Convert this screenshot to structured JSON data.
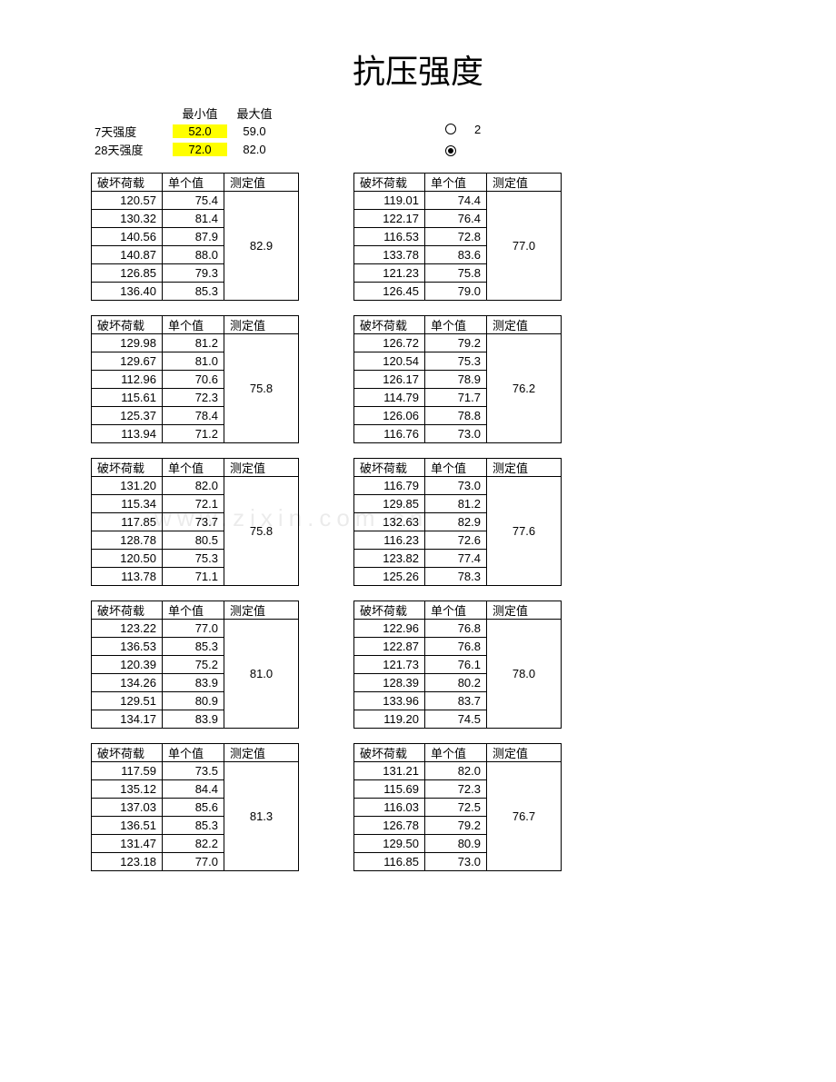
{
  "title": "抗压强度",
  "header": {
    "col_min": "最小值",
    "col_max": "最大值",
    "row1_label": "7天强度",
    "row1_min": "52.0",
    "row1_max": "59.0",
    "row2_label": "28天强度",
    "row2_min": "72.0",
    "row2_max": "82.0",
    "radio1_label": "2",
    "radio1_checked": false,
    "radio2_checked": true
  },
  "colheaders": {
    "load": "破坏荷载",
    "single": "单个值",
    "measure": "测定值"
  },
  "blocks": [
    [
      {
        "measure": "82.9",
        "rows": [
          {
            "load": "120.57",
            "single": "75.4"
          },
          {
            "load": "130.32",
            "single": "81.4"
          },
          {
            "load": "140.56",
            "single": "87.9"
          },
          {
            "load": "140.87",
            "single": "88.0"
          },
          {
            "load": "126.85",
            "single": "79.3"
          },
          {
            "load": "136.40",
            "single": "85.3"
          }
        ]
      },
      {
        "measure": "77.0",
        "rows": [
          {
            "load": "119.01",
            "single": "74.4"
          },
          {
            "load": "122.17",
            "single": "76.4"
          },
          {
            "load": "116.53",
            "single": "72.8"
          },
          {
            "load": "133.78",
            "single": "83.6"
          },
          {
            "load": "121.23",
            "single": "75.8"
          },
          {
            "load": "126.45",
            "single": "79.0"
          }
        ]
      }
    ],
    [
      {
        "measure": "75.8",
        "rows": [
          {
            "load": "129.98",
            "single": "81.2"
          },
          {
            "load": "129.67",
            "single": "81.0"
          },
          {
            "load": "112.96",
            "single": "70.6"
          },
          {
            "load": "115.61",
            "single": "72.3"
          },
          {
            "load": "125.37",
            "single": "78.4"
          },
          {
            "load": "113.94",
            "single": "71.2"
          }
        ]
      },
      {
        "measure": "76.2",
        "rows": [
          {
            "load": "126.72",
            "single": "79.2"
          },
          {
            "load": "120.54",
            "single": "75.3"
          },
          {
            "load": "126.17",
            "single": "78.9"
          },
          {
            "load": "114.79",
            "single": "71.7"
          },
          {
            "load": "126.06",
            "single": "78.8"
          },
          {
            "load": "116.76",
            "single": "73.0"
          }
        ]
      }
    ],
    [
      {
        "measure": "75.8",
        "rows": [
          {
            "load": "131.20",
            "single": "82.0"
          },
          {
            "load": "115.34",
            "single": "72.1"
          },
          {
            "load": "117.85",
            "single": "73.7"
          },
          {
            "load": "128.78",
            "single": "80.5"
          },
          {
            "load": "120.50",
            "single": "75.3"
          },
          {
            "load": "113.78",
            "single": "71.1"
          }
        ]
      },
      {
        "measure": "77.6",
        "rows": [
          {
            "load": "116.79",
            "single": "73.0"
          },
          {
            "load": "129.85",
            "single": "81.2"
          },
          {
            "load": "132.63",
            "single": "82.9"
          },
          {
            "load": "116.23",
            "single": "72.6"
          },
          {
            "load": "123.82",
            "single": "77.4"
          },
          {
            "load": "125.26",
            "single": "78.3"
          }
        ]
      }
    ],
    [
      {
        "measure": "81.0",
        "rows": [
          {
            "load": "123.22",
            "single": "77.0"
          },
          {
            "load": "136.53",
            "single": "85.3"
          },
          {
            "load": "120.39",
            "single": "75.2"
          },
          {
            "load": "134.26",
            "single": "83.9"
          },
          {
            "load": "129.51",
            "single": "80.9"
          },
          {
            "load": "134.17",
            "single": "83.9"
          }
        ]
      },
      {
        "measure": "78.0",
        "rows": [
          {
            "load": "122.96",
            "single": "76.8"
          },
          {
            "load": "122.87",
            "single": "76.8"
          },
          {
            "load": "121.73",
            "single": "76.1"
          },
          {
            "load": "128.39",
            "single": "80.2"
          },
          {
            "load": "133.96",
            "single": "83.7"
          },
          {
            "load": "119.20",
            "single": "74.5"
          }
        ]
      }
    ],
    [
      {
        "measure": "81.3",
        "rows": [
          {
            "load": "117.59",
            "single": "73.5"
          },
          {
            "load": "135.12",
            "single": "84.4"
          },
          {
            "load": "137.03",
            "single": "85.6"
          },
          {
            "load": "136.51",
            "single": "85.3"
          },
          {
            "load": "131.47",
            "single": "82.2"
          },
          {
            "load": "123.18",
            "single": "77.0"
          }
        ]
      },
      {
        "measure": "76.7",
        "rows": [
          {
            "load": "131.21",
            "single": "82.0"
          },
          {
            "load": "115.69",
            "single": "72.3"
          },
          {
            "load": "116.03",
            "single": "72.5"
          },
          {
            "load": "126.78",
            "single": "79.2"
          },
          {
            "load": "129.50",
            "single": "80.9"
          },
          {
            "load": "116.85",
            "single": "73.0"
          }
        ]
      }
    ]
  ],
  "watermark": "www.zixin.com.cn"
}
